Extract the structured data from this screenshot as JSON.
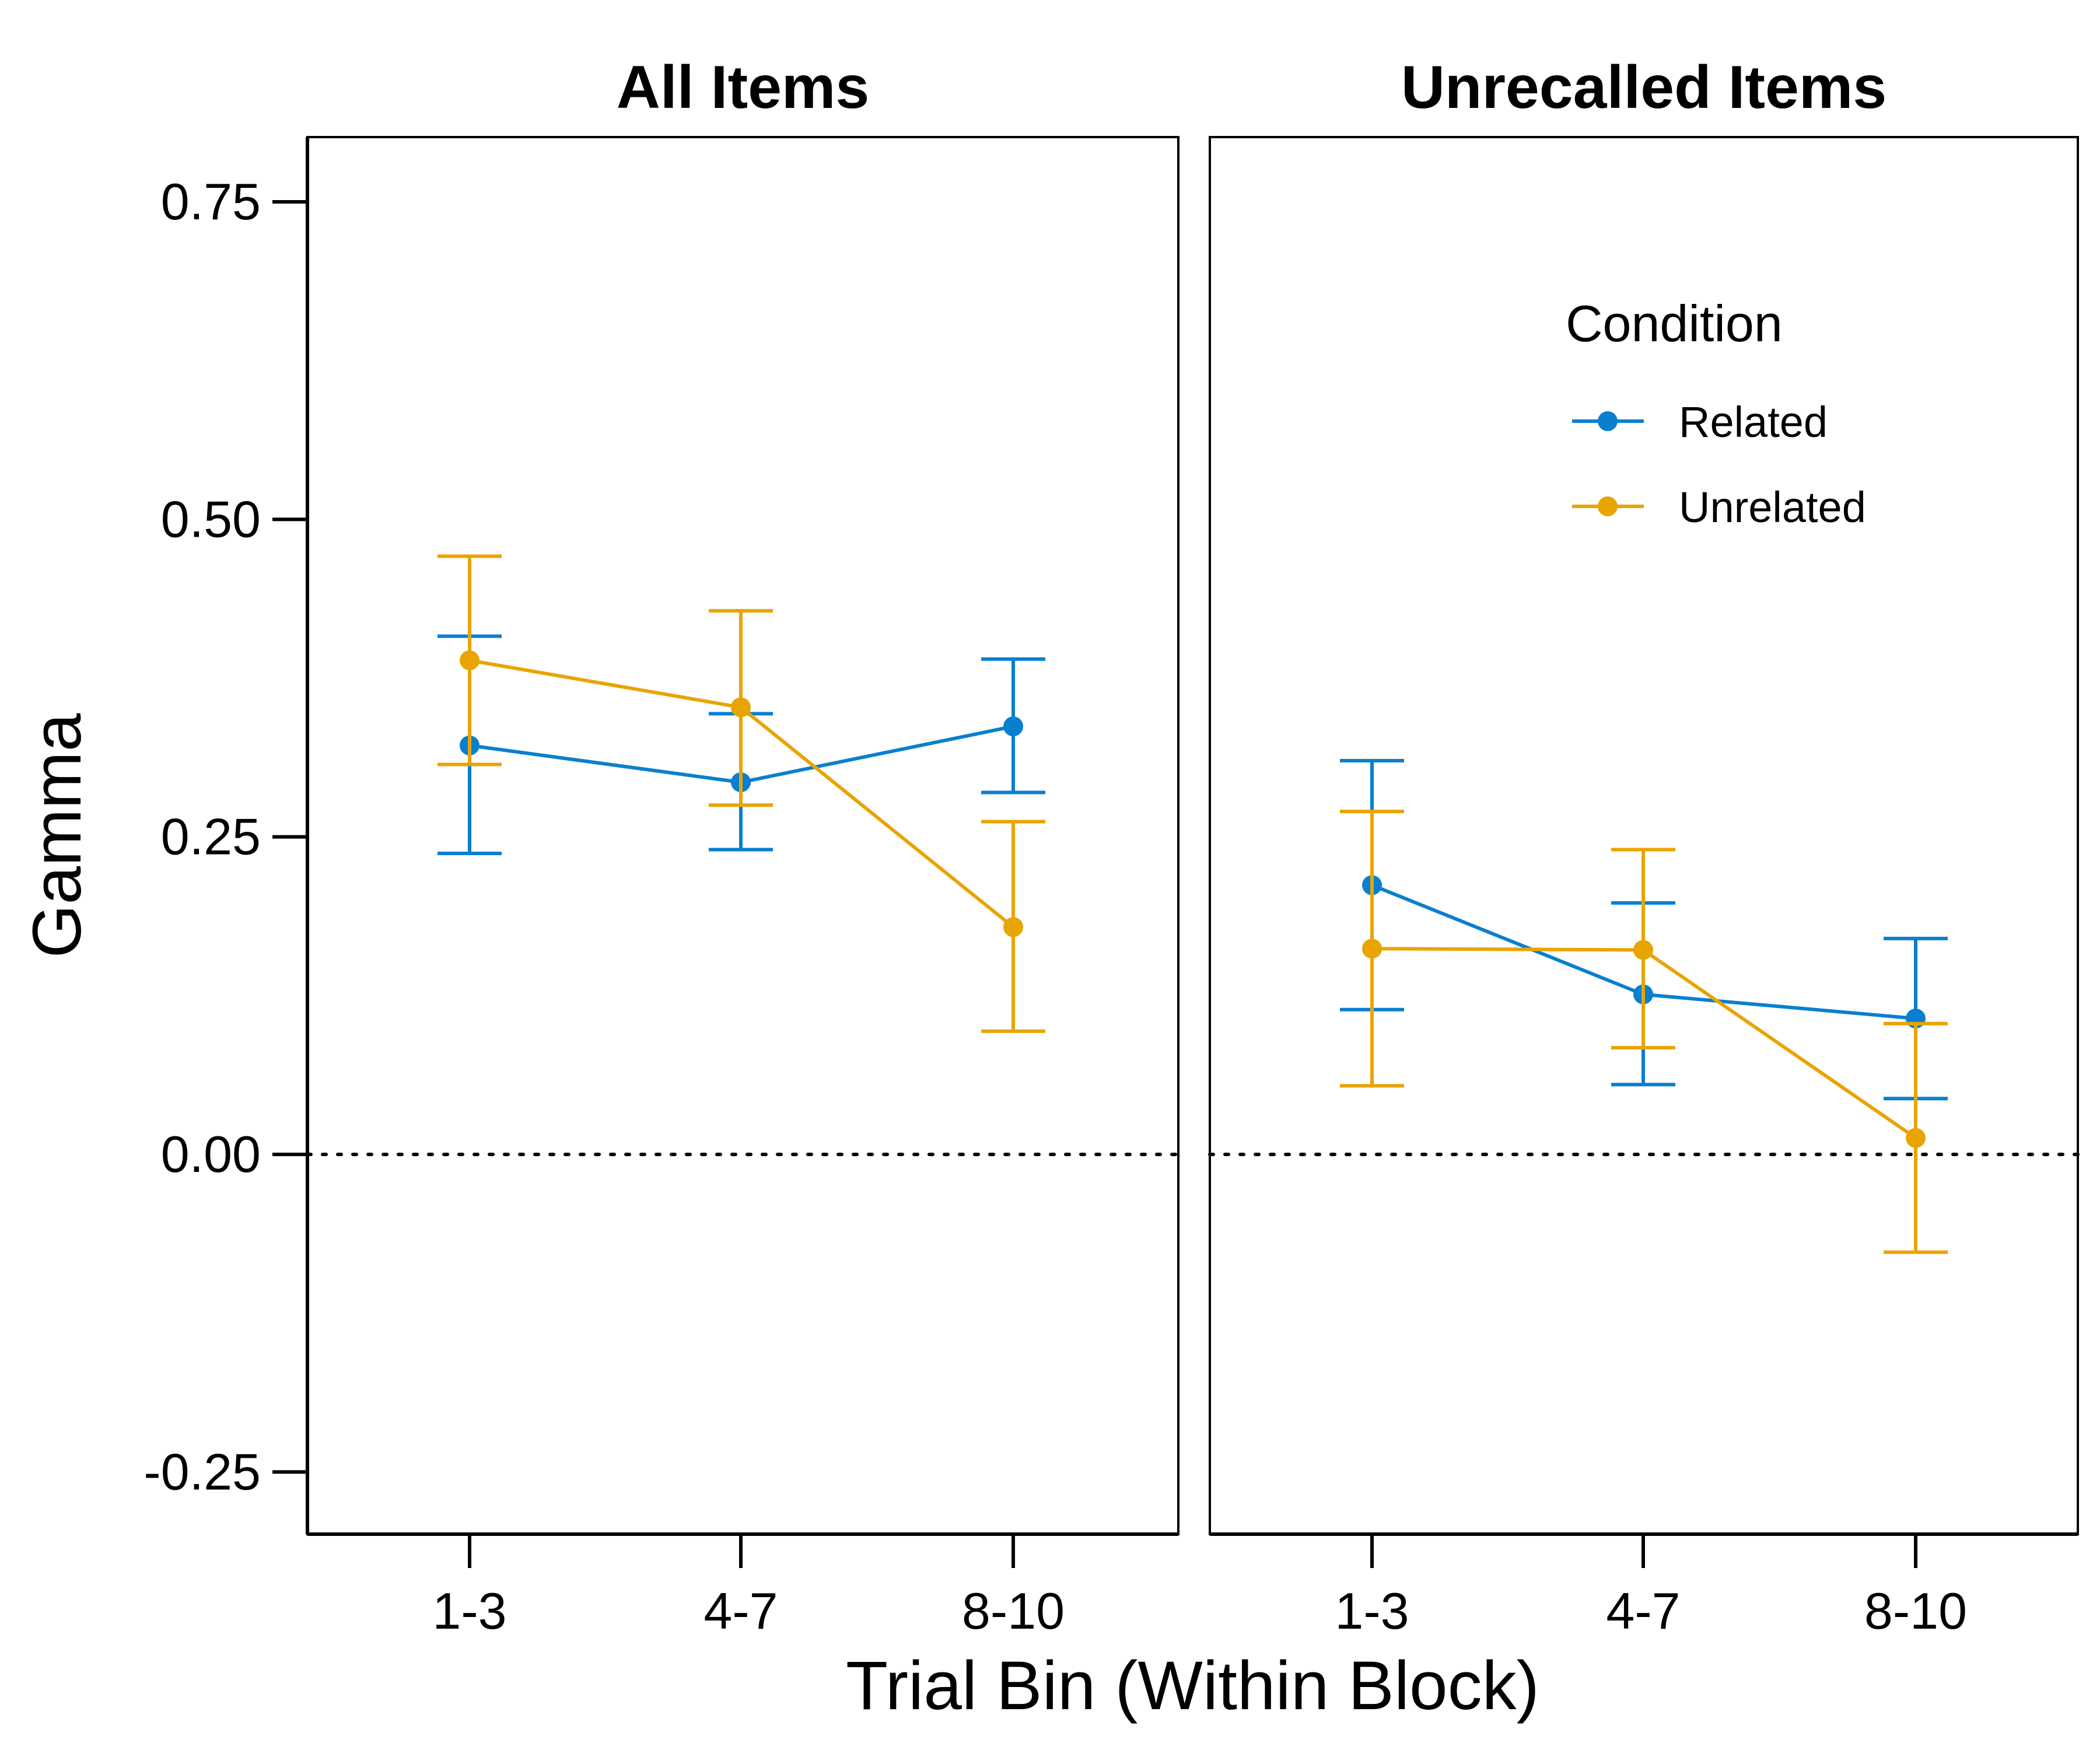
{
  "chart_data": {
    "type": "line",
    "categories": [
      "1-3",
      "4-7",
      "8-10"
    ],
    "ylabel": "Gamma",
    "xlabel": "Trial Bin (Within Block)",
    "ylim": [
      -0.3,
      0.8
    ],
    "yticks": [
      "0.75",
      "0.50",
      "0.25",
      "0.00",
      "-0.25"
    ],
    "ytick_values": [
      0.75,
      0.5,
      0.25,
      0.0,
      -0.25
    ],
    "reference_line": 0.0,
    "colors": {
      "Related": "#0a7fcf",
      "Unrelated": "#e8a400"
    },
    "legend": {
      "title": "Condition",
      "placement": "top-right",
      "entries": [
        "Related",
        "Unrelated"
      ]
    },
    "panels": [
      {
        "title": "All Items",
        "series": [
          {
            "name": "Related",
            "values": [
              0.322,
              0.293,
              0.337
            ],
            "lower": [
              0.237,
              0.24,
              0.285
            ],
            "upper": [
              0.408,
              0.347,
              0.39
            ]
          },
          {
            "name": "Unrelated",
            "values": [
              0.389,
              0.352,
              0.179
            ],
            "lower": [
              0.307,
              0.275,
              0.097
            ],
            "upper": [
              0.471,
              0.428,
              0.262
            ]
          }
        ]
      },
      {
        "title": "Unrecalled Items",
        "series": [
          {
            "name": "Related",
            "values": [
              0.212,
              0.126,
              0.107
            ],
            "lower": [
              0.114,
              0.055,
              0.044
            ],
            "upper": [
              0.31,
              0.198,
              0.17
            ]
          },
          {
            "name": "Unrelated",
            "values": [
              0.162,
              0.161,
              0.013
            ],
            "lower": [
              0.054,
              0.084,
              -0.077
            ],
            "upper": [
              0.27,
              0.24,
              0.103
            ]
          }
        ]
      }
    ]
  }
}
